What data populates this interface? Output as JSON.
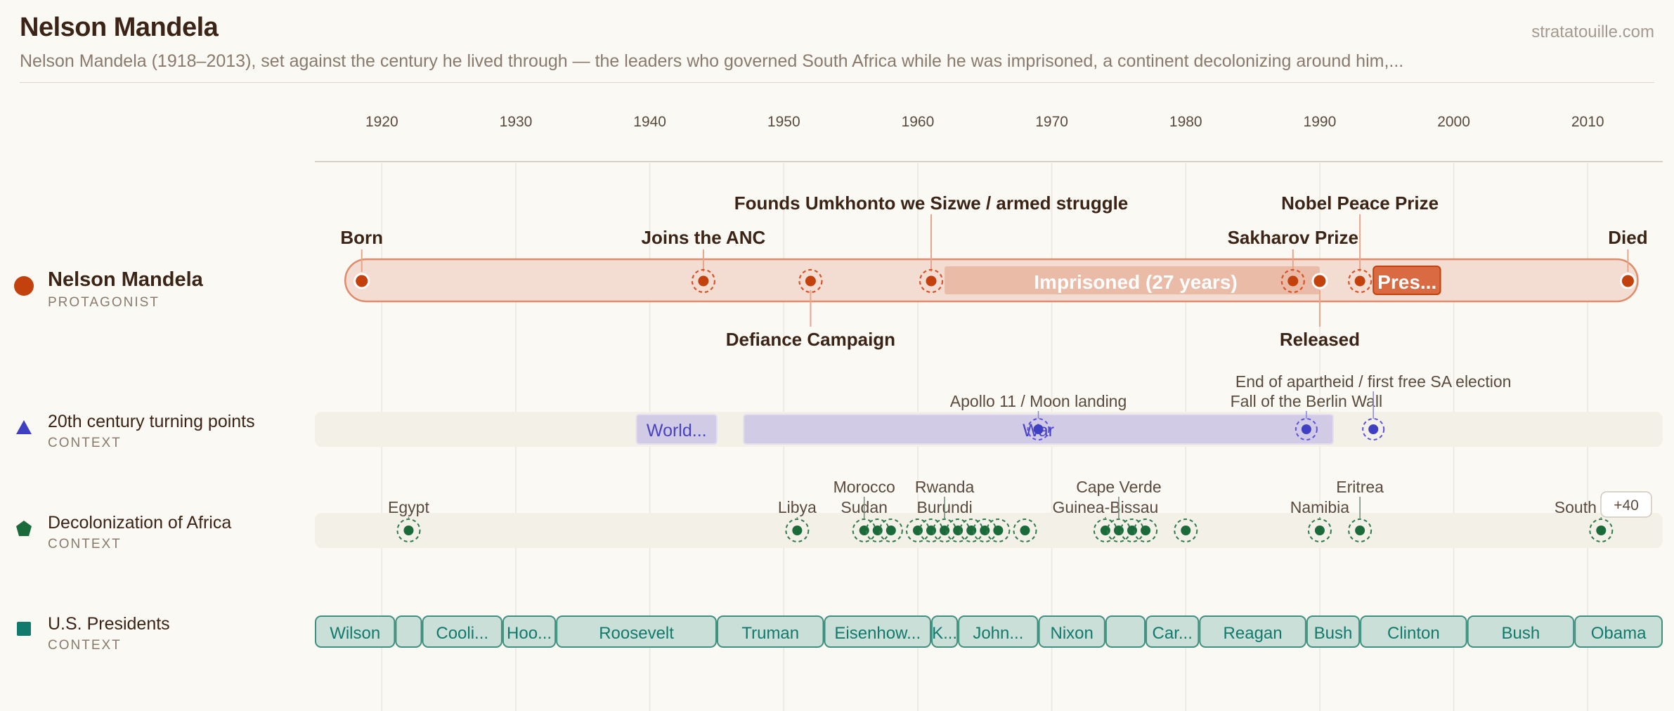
{
  "header": {
    "title": "Nelson Mandela",
    "subtitle": "Nelson Mandela (1918–2013), set against the century he lived through — the leaders who governed South Africa while he was imprisoned, a continent decolonizing around him,...",
    "brand": "stratatouille.com"
  },
  "lanes": [
    {
      "name": "Nelson Mandela",
      "kind": "PROTAGONIST",
      "color": "#c2410c",
      "icon": "circle-icon"
    },
    {
      "name": "20th century turning points",
      "kind": "CONTEXT",
      "color": "#3f3fc4",
      "icon": "triangle-icon"
    },
    {
      "name": "Decolonization of Africa",
      "kind": "CONTEXT",
      "color": "#1a6a3a",
      "icon": "pentagon-icon"
    },
    {
      "name": "U.S. Presidents",
      "kind": "CONTEXT",
      "color": "#117a6c",
      "icon": "square-icon"
    }
  ],
  "chart_data": {
    "type": "timeline",
    "xlim": [
      1915,
      2015.6
    ],
    "ticks": [
      1920,
      1930,
      1940,
      1950,
      1960,
      1970,
      1980,
      1990,
      2000,
      2010
    ],
    "mandela": {
      "span": [
        1918,
        2013
      ],
      "periods": [
        {
          "label": "Imprisoned (27 years)",
          "start": 1962,
          "end": 1990
        },
        {
          "label": "Pres...",
          "start": 1994,
          "end": 1999
        }
      ],
      "events": [
        {
          "label": "Born",
          "year": 1918.5,
          "pos": "above",
          "style": "solid"
        },
        {
          "label": "Joins the ANC",
          "year": 1944,
          "pos": "above",
          "style": "ring"
        },
        {
          "label": "Defiance Campaign",
          "year": 1952,
          "pos": "below",
          "style": "ring"
        },
        {
          "label": "Founds Umkhonto we Sizwe / armed struggle",
          "year": 1961,
          "pos": "above-high",
          "style": "ring"
        },
        {
          "label": "Sakharov Prize",
          "year": 1988,
          "pos": "above",
          "style": "ring"
        },
        {
          "label": "Released",
          "year": 1990,
          "pos": "below",
          "style": "solid"
        },
        {
          "label": "Nobel Peace Prize",
          "year": 1993,
          "pos": "above-high",
          "style": "ring"
        },
        {
          "label": "Died",
          "year": 2013,
          "pos": "above",
          "style": "solid"
        }
      ]
    },
    "turning_points": {
      "periods": [
        {
          "label": "World...",
          "start": 1939,
          "end": 1945
        },
        {
          "label": "War",
          "start": 1947,
          "end": 1991
        }
      ],
      "events": [
        {
          "label": "Apollo 11 / Moon landing",
          "year": 1969
        },
        {
          "label": "Fall of the Berlin Wall",
          "year": 1989
        },
        {
          "label": "End of apartheid / first free SA election",
          "year": 1994
        }
      ]
    },
    "decolonization": {
      "years": [
        1922,
        1951,
        1956,
        1957,
        1958,
        1960,
        1961,
        1962,
        1963,
        1964,
        1965,
        1966,
        1968,
        1974,
        1975,
        1976,
        1977,
        1980,
        1990,
        1993,
        2011
      ],
      "labels": [
        {
          "label": "Egypt",
          "year": 1922,
          "level": 1
        },
        {
          "label": "Libya",
          "year": 1951,
          "level": 1
        },
        {
          "label": "Sudan",
          "year": 1956,
          "level": 1
        },
        {
          "label": "Morocco",
          "year": 1956,
          "level": 2
        },
        {
          "label": "Burundi",
          "year": 1962,
          "level": 1
        },
        {
          "label": "Rwanda",
          "year": 1962,
          "level": 2
        },
        {
          "label": "Guinea-Bissau",
          "year": 1974,
          "level": 1
        },
        {
          "label": "Cape Verde",
          "year": 1975,
          "level": 2
        },
        {
          "label": "Namibia",
          "year": 1990,
          "level": 1
        },
        {
          "label": "Eritrea",
          "year": 1993,
          "level": 2
        },
        {
          "label": "South Sudan",
          "year": 2011,
          "level": 1
        }
      ],
      "more": "+40"
    },
    "presidents": [
      {
        "label": "Wilson",
        "start": 1913,
        "end": 1921
      },
      {
        "label": "",
        "start": 1921,
        "end": 1923
      },
      {
        "label": "Cooli...",
        "start": 1923,
        "end": 1929
      },
      {
        "label": "Hoo...",
        "start": 1929,
        "end": 1933
      },
      {
        "label": "Roosevelt",
        "start": 1933,
        "end": 1945
      },
      {
        "label": "Truman",
        "start": 1945,
        "end": 1953
      },
      {
        "label": "Eisenhow...",
        "start": 1953,
        "end": 1961
      },
      {
        "label": "K...",
        "start": 1961,
        "end": 1963
      },
      {
        "label": "John...",
        "start": 1963,
        "end": 1969
      },
      {
        "label": "Nixon",
        "start": 1969,
        "end": 1974
      },
      {
        "label": "",
        "start": 1974,
        "end": 1977
      },
      {
        "label": "Car...",
        "start": 1977,
        "end": 1981
      },
      {
        "label": "Reagan",
        "start": 1981,
        "end": 1989
      },
      {
        "label": "Bush",
        "start": 1989,
        "end": 1993
      },
      {
        "label": "Clinton",
        "start": 1993,
        "end": 2001
      },
      {
        "label": "Bush",
        "start": 2001,
        "end": 2009
      },
      {
        "label": "Obama",
        "start": 2009,
        "end": 2017
      }
    ]
  }
}
